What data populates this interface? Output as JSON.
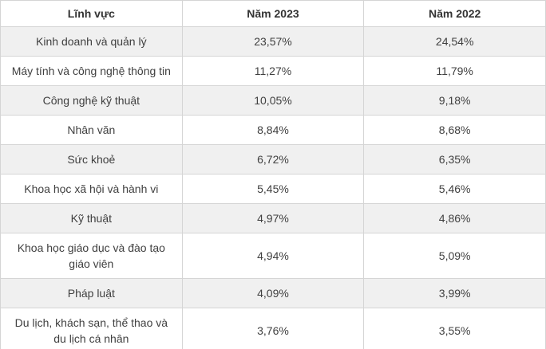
{
  "chart_data": {
    "type": "table",
    "columns": [
      "Lĩnh vực",
      "Năm 2023",
      "Năm 2022"
    ],
    "rows": [
      [
        "Kinh doanh và quản lý",
        "23,57%",
        "24,54%"
      ],
      [
        "Máy tính và công nghệ thông tin",
        "11,27%",
        "11,79%"
      ],
      [
        "Công nghệ kỹ thuật",
        "10,05%",
        "9,18%"
      ],
      [
        "Nhân văn",
        "8,84%",
        "8,68%"
      ],
      [
        "Sức khoẻ",
        "6,72%",
        "6,35%"
      ],
      [
        "Khoa học xã hội và hành vi",
        "5,45%",
        "5,46%"
      ],
      [
        "Kỹ thuật",
        "4,97%",
        "4,86%"
      ],
      [
        "Khoa học giáo dục và đào tạo giáo viên",
        "4,94%",
        "5,09%"
      ],
      [
        "Pháp luật",
        "4,09%",
        "3,99%"
      ],
      [
        "Du lịch, khách sạn, thể thao và du lịch cá nhân",
        "3,76%",
        "3,55%"
      ]
    ],
    "series": [
      {
        "name": "Năm 2023",
        "values": [
          23.57,
          11.27,
          10.05,
          8.84,
          6.72,
          5.45,
          4.97,
          4.94,
          4.09,
          3.76
        ]
      },
      {
        "name": "Năm 2022",
        "values": [
          24.54,
          11.79,
          9.18,
          8.68,
          6.35,
          5.46,
          4.86,
          5.09,
          3.99,
          3.55
        ]
      }
    ],
    "categories": [
      "Kinh doanh và quản lý",
      "Máy tính và công nghệ thông tin",
      "Công nghệ kỹ thuật",
      "Nhân văn",
      "Sức khoẻ",
      "Khoa học xã hội và hành vi",
      "Kỹ thuật",
      "Khoa học giáo dục và đào tạo giáo viên",
      "Pháp luật",
      "Du lịch, khách sạn, thể thao và du lịch cá nhân"
    ],
    "title": "",
    "xlabel": "",
    "ylabel": ""
  },
  "colors": {
    "stripe_row_bg": "#f0f0f0",
    "white_row_bg": "#ffffff",
    "border": "#d5d5d5",
    "body_text": "#404040",
    "header_text": "#333333"
  }
}
